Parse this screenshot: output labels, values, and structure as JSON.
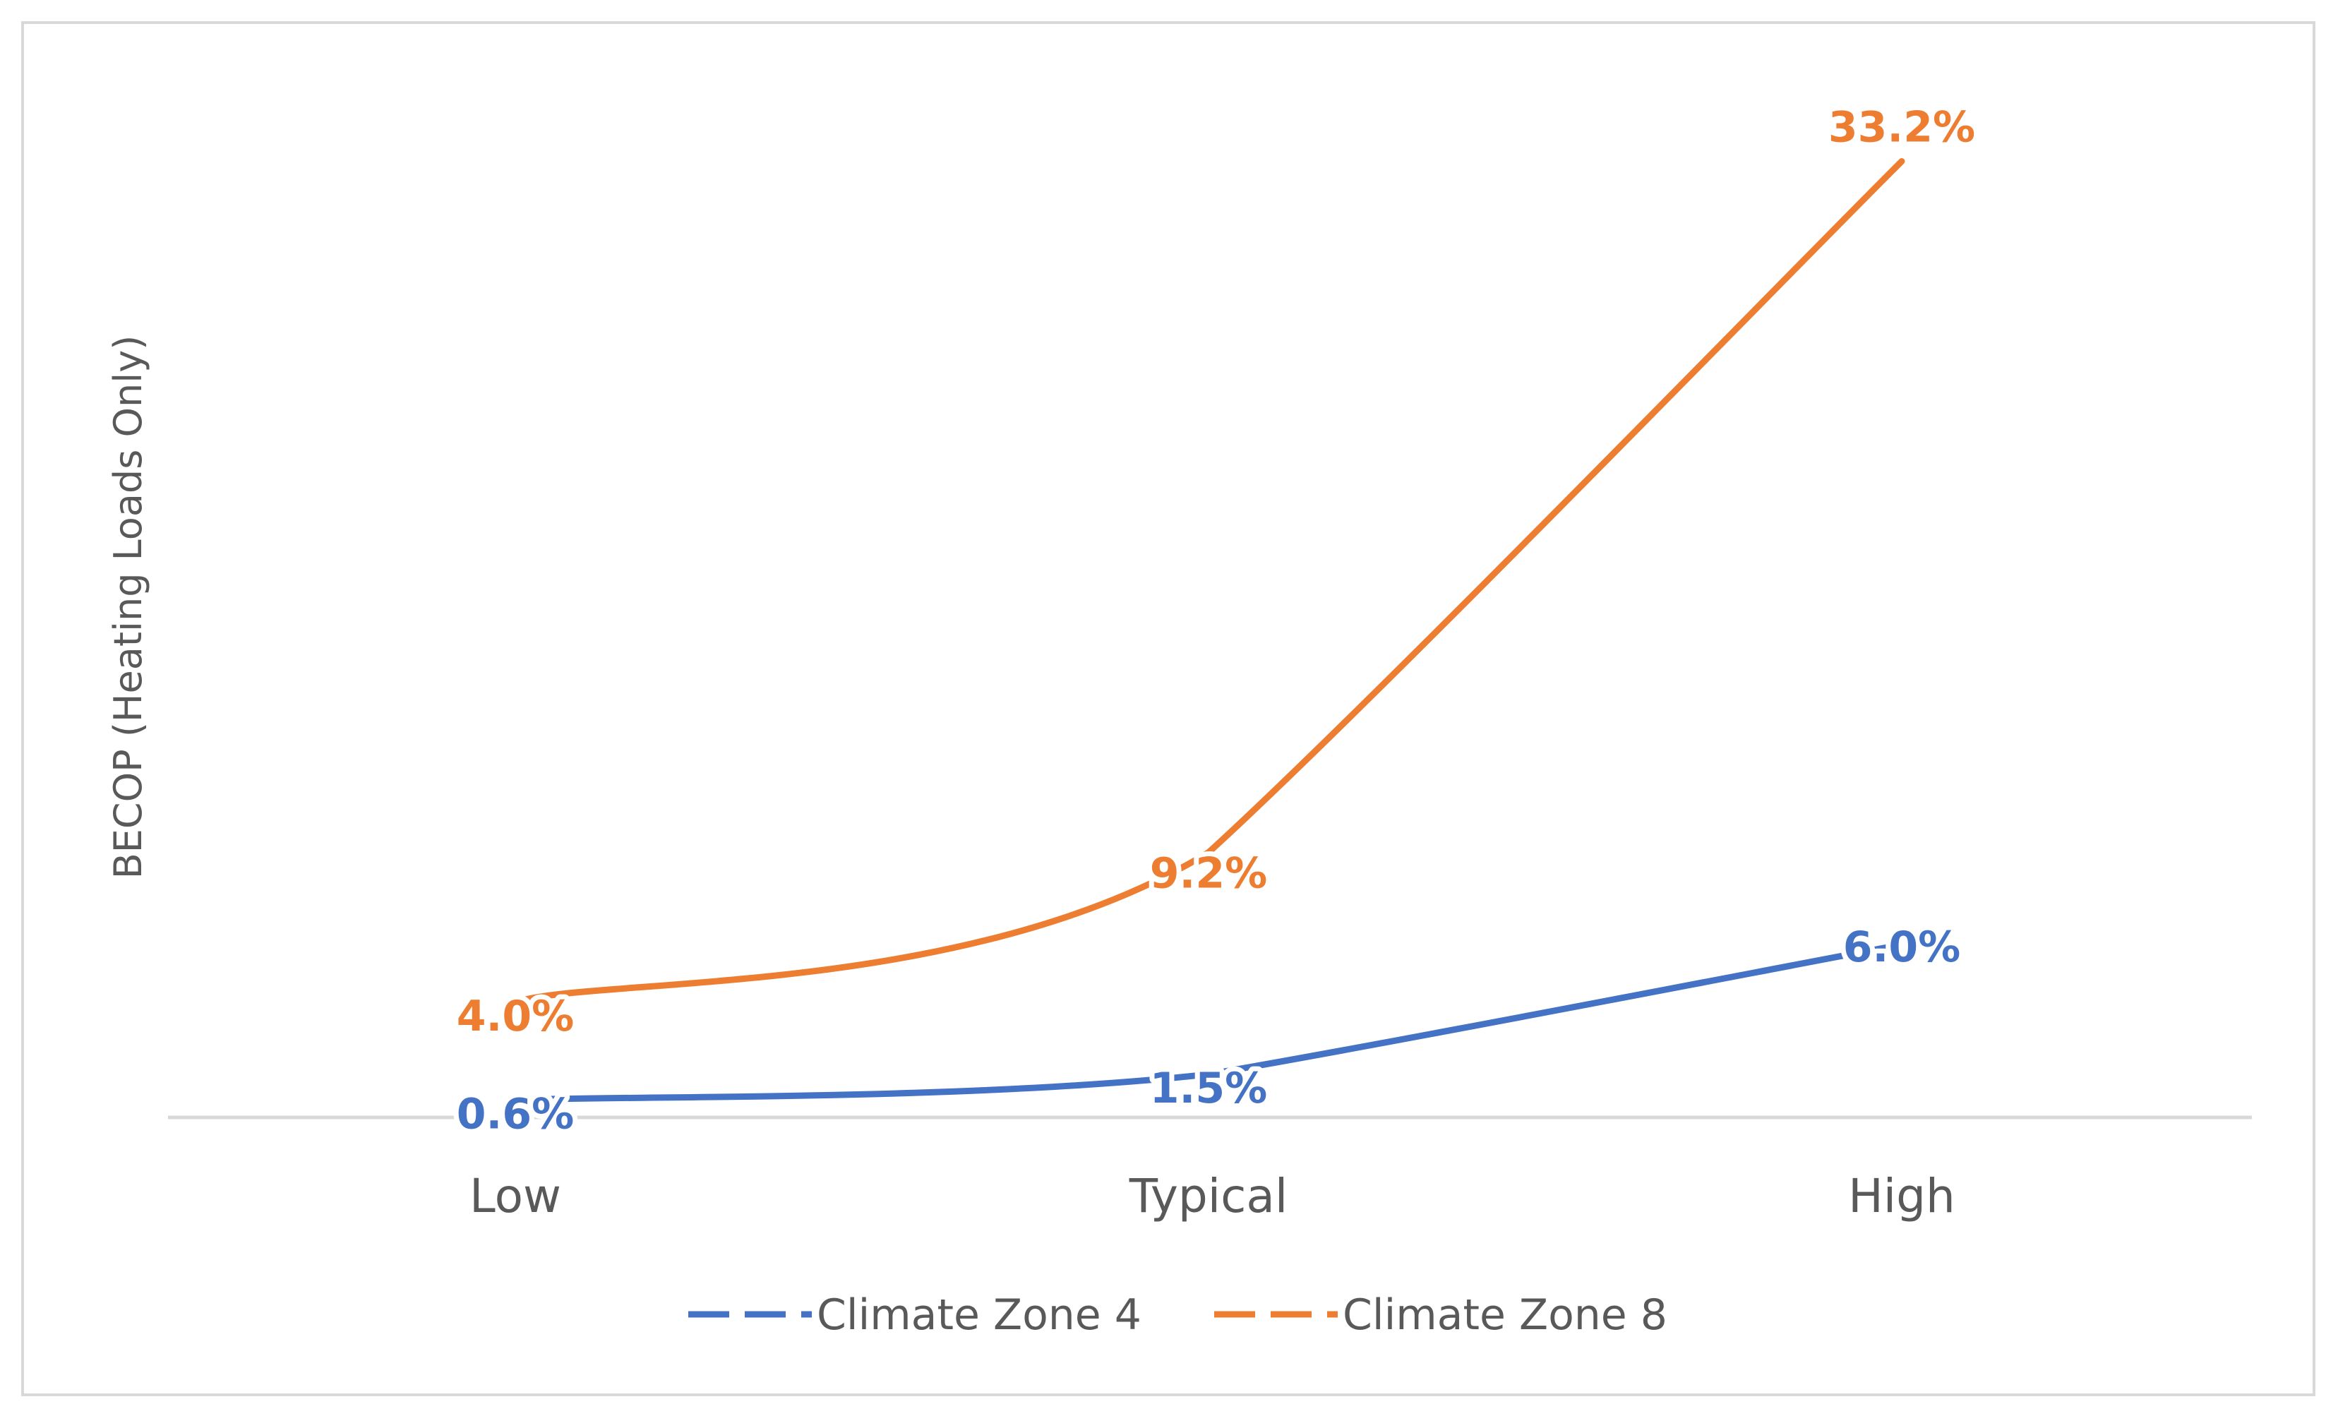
{
  "chart_data": {
    "type": "line",
    "title": "",
    "xlabel": "",
    "ylabel": "BECOP (Heating Loads Only)",
    "categories": [
      "Low",
      "Typical",
      "High"
    ],
    "ylim": [
      0,
      35
    ],
    "grid": false,
    "smooth": true,
    "legend_position": "bottom",
    "series": [
      {
        "name": "Climate Zone 4",
        "color": "#4472C4",
        "values": [
          0.6,
          1.5,
          6.0
        ],
        "labels": [
          "0.6%",
          "1.5%",
          "6.0%"
        ]
      },
      {
        "name": "Climate Zone 8",
        "color": "#ED7D31",
        "values": [
          4.0,
          9.2,
          33.2
        ],
        "labels": [
          "4.0%",
          "9.2%",
          "33.2%"
        ]
      }
    ]
  }
}
